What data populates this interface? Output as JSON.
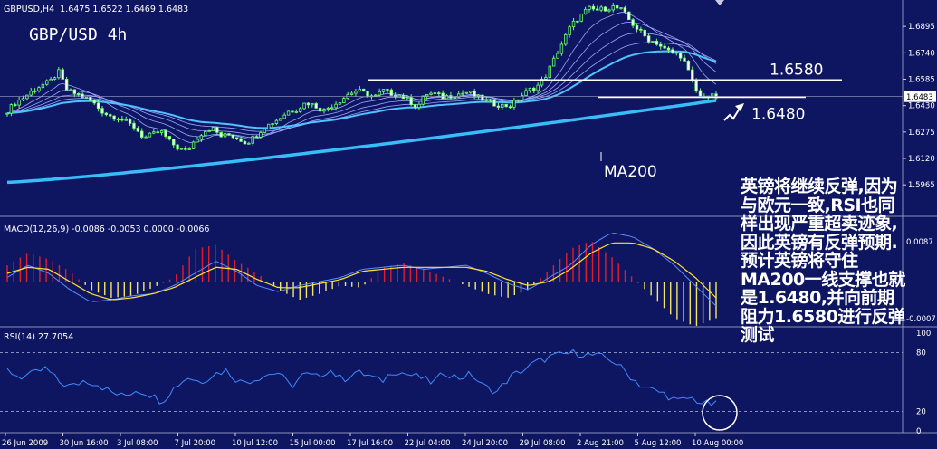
{
  "chart_data": [
    {
      "type": "candlestick",
      "instrument": "GBPUSD,H4",
      "header_values": "1.6475 1.6522 1.6469 1.6483",
      "title": "GBP/USD 4h",
      "y_axis": {
        "ticks": [
          "1.6895",
          "1.6740",
          "1.6585",
          "1.6430",
          "1.6275",
          "1.6120",
          "1.5965"
        ],
        "range": [
          1.578,
          1.705
        ]
      },
      "last_price": "1.6483",
      "x_labels": [
        "26 Jun 2009",
        "30 Jun 16:00",
        "3 Jul 08:00",
        "7 Jul 20:00",
        "10 Jul 12:00",
        "15 Jul 00:00",
        "17 Jul 16:00",
        "22 Jul 04:00",
        "24 Jul 20:00",
        "29 Jul 08:00",
        "2 Aug 21:00",
        "5 Aug 12:00",
        "10 Aug 00:00"
      ],
      "close_path": [
        1.64,
        1.645,
        1.648,
        1.652,
        1.655,
        1.657,
        1.663,
        1.652,
        1.65,
        1.648,
        1.645,
        1.64,
        1.637,
        1.636,
        1.633,
        1.63,
        1.624,
        1.626,
        1.628,
        1.622,
        1.618,
        1.616,
        1.623,
        1.628,
        1.63,
        1.625,
        1.626,
        1.624,
        1.621,
        1.625,
        1.63,
        1.633,
        1.636,
        1.64,
        1.641,
        1.645,
        1.643,
        1.64,
        1.643,
        1.646,
        1.65,
        1.652,
        1.65,
        1.648,
        1.652,
        1.65,
        1.649,
        1.646,
        1.642,
        1.65,
        1.65,
        1.648,
        1.649,
        1.65,
        1.651,
        1.648,
        1.646,
        1.644,
        1.643,
        1.643,
        1.648,
        1.652,
        1.654,
        1.66,
        1.67,
        1.68,
        1.69,
        1.695,
        1.7,
        1.699,
        1.7,
        1.701,
        1.699,
        1.692,
        1.687,
        1.682,
        1.68,
        1.676,
        1.674,
        1.672,
        1.66,
        1.648,
        1.649,
        1.648
      ],
      "annotations": [
        "1.6580",
        "1.6480",
        "MA200"
      ]
    },
    {
      "type": "histogram+line",
      "indicator": "MACD(12,26,9) -0.0086 -0.0053 0.0000 -0.0066",
      "histogram": [
        0.4,
        0.7,
        0.55,
        0.25,
        -0.2,
        -0.4,
        -0.35,
        -0.15,
        0.1,
        0.8,
        0.9,
        0.5,
        0.2,
        -0.2,
        -0.45,
        -0.3,
        -0.1,
        -0.15,
        0.35,
        0.45,
        0.3,
        0.1,
        -0.1,
        -0.3,
        -0.4,
        -0.2,
        0.3,
        0.8,
        1.0,
        0.6,
        0.1,
        -0.4,
        -0.9,
        -1.1,
        -0.9
      ],
      "macd_line": [
        0.1,
        0.4,
        0.2,
        -0.2,
        -0.5,
        -0.45,
        -0.35,
        -0.3,
        -0.1,
        0.2,
        0.5,
        0.25,
        -0.1,
        -0.25,
        -0.1,
        0.0,
        0.1,
        0.3,
        0.35,
        0.4,
        0.3,
        0.35,
        0.4,
        0.2,
        -0.05,
        -0.2,
        0.1,
        0.4,
        0.9,
        1.2,
        1.1,
        0.8,
        0.4,
        -0.1,
        -0.6
      ],
      "signal_line": [
        0.2,
        0.35,
        0.3,
        0.0,
        -0.3,
        -0.45,
        -0.4,
        -0.3,
        -0.15,
        0.1,
        0.35,
        0.3,
        0.05,
        -0.15,
        -0.15,
        -0.05,
        0.05,
        0.25,
        0.3,
        0.35,
        0.35,
        0.35,
        0.35,
        0.25,
        0.05,
        -0.1,
        0.0,
        0.3,
        0.7,
        0.95,
        0.95,
        0.8,
        0.5,
        0.1,
        -0.4
      ],
      "y_ticks": [
        "0.0087",
        "-0.0007"
      ]
    },
    {
      "type": "line",
      "indicator": "RSI(14) 27.7054",
      "y_ticks": [
        "100",
        "80",
        "20",
        "0"
      ],
      "ylim": [
        0,
        100
      ],
      "values": [
        62,
        55,
        58,
        64,
        50,
        45,
        52,
        48,
        40,
        35,
        42,
        38,
        30,
        45,
        55,
        50,
        58,
        62,
        50,
        52,
        57,
        60,
        45,
        58,
        55,
        63,
        52,
        60,
        57,
        50,
        62,
        58,
        55,
        49,
        60,
        54,
        58,
        45,
        40,
        55,
        62,
        70,
        75,
        78,
        80,
        78,
        76,
        72,
        60,
        48,
        42,
        38,
        30,
        34,
        28,
        27
      ]
    }
  ],
  "commentary": "英镑将继续反弹,因为\n与欧元一致,RSI也同\n样出现严重超卖迹象,\n因此英镑有反弹预期.\n预计英镑将守住\nMA200一线支撑也就\n是1.6480,并向前期\n阻力1.6580进行反弹\n测试"
}
